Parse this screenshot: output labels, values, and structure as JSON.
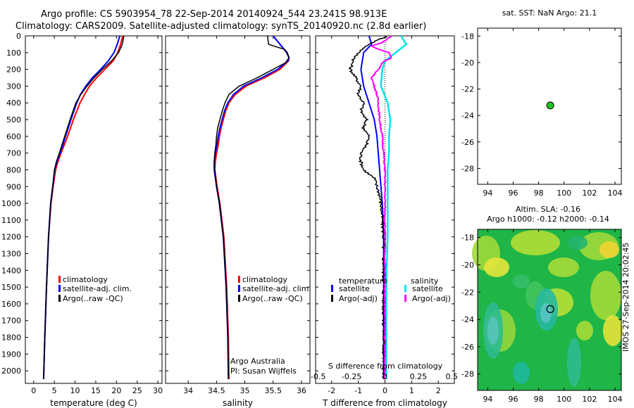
{
  "title_line1": "Argo profile: CS 5903954_78 22-Sep-2014 20140924_544 23.241S 98.913E",
  "title_line2": "Climatology: CARS2009. Satellite-adjusted climatology: synTS_20140920.nc (2.8d earlier)",
  "side_label": "IMOS 27-Sep-2014 20:02:45",
  "colors": {
    "climatology": "#ff0000",
    "satellite": "#0000ff",
    "argo": "#000000",
    "sal_sat": "#00e5ee",
    "sal_argo": "#ff00ff",
    "marker": "#22c422"
  },
  "chart_data": [
    {
      "type": "line",
      "xlabel": "temperature (deg C)",
      "ylabel": "",
      "xlim": [
        -2,
        31
      ],
      "ylim": [
        2075,
        0
      ],
      "xticks": [
        "0",
        "5",
        "10",
        "15",
        "20",
        "25",
        "30"
      ],
      "xtick_values": [
        0,
        5,
        10,
        15,
        20,
        25,
        30
      ],
      "yticks": [
        "0",
        "100",
        "200",
        "300",
        "400",
        "500",
        "600",
        "700",
        "800",
        "900",
        "1000",
        "1100",
        "1200",
        "1300",
        "1400",
        "1500",
        "1600",
        "1700",
        "1800",
        "1900",
        "2000"
      ],
      "ytick_values": [
        0,
        100,
        200,
        300,
        400,
        500,
        600,
        700,
        800,
        900,
        1000,
        1100,
        1200,
        1300,
        1400,
        1500,
        1600,
        1700,
        1800,
        1900,
        2000
      ],
      "legend": [
        "climatology",
        "satellite-adj. clim.",
        "Argo(..raw -QC)"
      ],
      "series": [
        {
          "name": "climatology",
          "depth": [
            0,
            50,
            100,
            150,
            200,
            250,
            300,
            350,
            400,
            500,
            600,
            700,
            750,
            800,
            900,
            1000,
            1200,
            1500,
            1800,
            2050
          ],
          "values": [
            21.5,
            21,
            20.3,
            19.2,
            17.2,
            15.2,
            13.5,
            12.3,
            11.2,
            9.6,
            8.2,
            6.6,
            5.9,
            5.3,
            4.7,
            4.2,
            3.6,
            3.1,
            2.7,
            2.4
          ]
        },
        {
          "name": "satellite-adj. clim.",
          "depth": [
            0,
            50,
            100,
            150,
            200,
            250,
            300,
            350,
            400,
            500,
            600,
            700,
            750,
            800,
            900,
            1000,
            1200,
            1500,
            1800,
            2050
          ],
          "values": [
            20.8,
            20.2,
            19.4,
            18,
            16.2,
            14.2,
            12.6,
            11.3,
            10.4,
            9,
            7.7,
            6.4,
            5.6,
            5.1,
            4.6,
            4.1,
            3.6,
            3.1,
            2.7,
            2.4
          ]
        },
        {
          "name": "Argo(..raw -QC)",
          "depth": [
            0,
            50,
            100,
            150,
            200,
            250,
            300,
            350,
            400,
            500,
            600,
            700,
            750,
            800,
            900,
            1000,
            1200,
            1500,
            1800,
            2050
          ],
          "values": [
            21.8,
            21.4,
            20.5,
            18.8,
            16.6,
            14.6,
            12.9,
            11.4,
            10.2,
            8.8,
            7.5,
            6.2,
            5.5,
            5,
            4.6,
            4.1,
            3.6,
            3.1,
            2.7,
            2.4
          ]
        }
      ]
    },
    {
      "type": "line",
      "xlabel": "salinity",
      "xlim": [
        33.6,
        36.15
      ],
      "ylim": [
        2075,
        0
      ],
      "xticks": [
        "34",
        "34.5",
        "35",
        "35.5",
        "36"
      ],
      "xtick_values": [
        34,
        34.5,
        35,
        35.5,
        36
      ],
      "legend": [
        "climatology",
        "satellite-adj. clim.",
        "Argo(..raw -QC)"
      ],
      "annotation": [
        "Argo Australia",
        "PI: Susan Wijffels"
      ],
      "series": [
        {
          "name": "climatology",
          "depth": [
            0,
            50,
            100,
            130,
            150,
            200,
            250,
            300,
            350,
            400,
            450,
            500,
            550,
            600,
            650,
            700,
            750,
            800,
            900,
            1000,
            1200,
            1500,
            1800,
            2050
          ],
          "values": [
            35.5,
            35.62,
            35.74,
            35.78,
            35.77,
            35.62,
            35.35,
            35.02,
            34.83,
            34.72,
            34.66,
            34.62,
            34.58,
            34.55,
            34.53,
            34.5,
            34.48,
            34.47,
            34.51,
            34.56,
            34.63,
            34.68,
            34.71,
            34.72
          ]
        },
        {
          "name": "satellite-adj. clim.",
          "depth": [
            0,
            50,
            100,
            130,
            150,
            200,
            250,
            300,
            350,
            400,
            450,
            500,
            550,
            600,
            650,
            700,
            750,
            800,
            900,
            1000,
            1200,
            1500,
            1800,
            2050
          ],
          "values": [
            35.5,
            35.62,
            35.74,
            35.78,
            35.76,
            35.58,
            35.3,
            34.98,
            34.8,
            34.7,
            34.64,
            34.6,
            34.56,
            34.53,
            34.51,
            34.48,
            34.46,
            34.46,
            34.5,
            34.55,
            34.62,
            34.67,
            34.7,
            34.71
          ]
        },
        {
          "name": "Argo(..raw -QC)",
          "depth": [
            0,
            50,
            70,
            80,
            100,
            130,
            160,
            200,
            250,
            300,
            350,
            400,
            450,
            500,
            550,
            600,
            650,
            700,
            750,
            800,
            900,
            1000,
            1200,
            1500,
            1800,
            2050
          ],
          "values": [
            35.4,
            35.42,
            35.6,
            35.7,
            35.75,
            35.78,
            35.72,
            35.5,
            35.22,
            34.9,
            34.72,
            34.65,
            34.6,
            34.56,
            34.52,
            34.5,
            34.49,
            34.47,
            34.46,
            34.47,
            34.5,
            34.55,
            34.62,
            34.67,
            34.7,
            34.71
          ]
        }
      ]
    },
    {
      "type": "line",
      "xlabel": "T difference from climatology",
      "xlabel_top": "S difference from climatology",
      "xlim": [
        -2.6,
        2.6
      ],
      "ylim": [
        2075,
        0
      ],
      "xticks": [
        "-2",
        "-1",
        "0",
        "1",
        "2"
      ],
      "xtick_values": [
        -2,
        -1,
        0,
        1,
        2
      ],
      "xticks_salinity": [
        "-0.5",
        "-0.25",
        "0",
        "0.25",
        "0.5"
      ],
      "xtick_values_salinity": [
        -0.5,
        -0.25,
        0,
        0.25,
        0.5
      ],
      "legend_headers": [
        "temperature",
        "salinity"
      ],
      "legend": [
        "satellite",
        "Argo(-adj)",
        "satellite",
        "Argo(-adj)"
      ],
      "series": [
        {
          "name": "temperature satellite",
          "variable": "T",
          "depth": [
            0,
            50,
            100,
            200,
            300,
            400,
            500,
            600,
            700,
            800,
            900,
            1000,
            1200,
            1500,
            1800,
            2050
          ],
          "values": [
            -0.6,
            -0.5,
            -0.8,
            -0.9,
            -0.8,
            -0.6,
            -0.4,
            -0.3,
            -0.25,
            -0.2,
            -0.15,
            -0.1,
            -0.05,
            -0.05,
            -0.05,
            -0.05
          ]
        },
        {
          "name": "temperature Argo(-adj)",
          "variable": "T",
          "depth": [
            0,
            50,
            100,
            150,
            200,
            250,
            300,
            350,
            400,
            450,
            500,
            550,
            600,
            650,
            700,
            750,
            800,
            850,
            900,
            950,
            1000,
            1100,
            1200,
            1400,
            1600,
            1800,
            2050
          ],
          "values": [
            0.1,
            -0.6,
            -1,
            -1.2,
            -1.3,
            -1.1,
            -0.9,
            -1,
            -0.8,
            -0.9,
            -0.7,
            -0.8,
            -0.6,
            -0.7,
            -0.9,
            -0.9,
            -0.8,
            -0.4,
            -0.3,
            -0.2,
            -0.15,
            -0.1,
            -0.05,
            -0.05,
            -0.05,
            -0.05,
            -0.05
          ]
        },
        {
          "name": "salinity satellite",
          "variable": "S",
          "depth": [
            0,
            50,
            100,
            150,
            200,
            300,
            400,
            500,
            600,
            700,
            800,
            900,
            1000,
            1200,
            1500,
            2050
          ],
          "values": [
            0.12,
            0.16,
            0.08,
            0.0,
            -0.02,
            -0.03,
            0.02,
            0.04,
            0.03,
            0.03,
            0.02,
            0.02,
            0.02,
            0.02,
            0.01,
            0.01
          ]
        },
        {
          "name": "salinity Argo(-adj)",
          "variable": "S",
          "depth": [
            0,
            40,
            60,
            80,
            100,
            130,
            160,
            200,
            250,
            300,
            350,
            400,
            500,
            600,
            800,
            1000,
            1500,
            2050
          ],
          "values": [
            0.05,
            -0.02,
            -0.1,
            -0.05,
            0.03,
            0.05,
            -0.02,
            -0.05,
            -0.1,
            -0.08,
            -0.06,
            -0.05,
            -0.04,
            -0.02,
            0.0,
            0.0,
            0.0,
            0.0
          ]
        }
      ]
    },
    {
      "type": "scatter",
      "title": "sat. SST: NaN Argo: 21.1",
      "xlim": [
        93.2,
        104.5
      ],
      "ylim": [
        -29.2,
        -17.4
      ],
      "xticks": [
        "94",
        "96",
        "98",
        "100",
        "102",
        "104"
      ],
      "xtick_values": [
        94,
        96,
        98,
        100,
        102,
        104
      ],
      "yticks": [
        "-18",
        "-20",
        "-22",
        "-24",
        "-26",
        "-28"
      ],
      "ytick_values": [
        -18,
        -20,
        -22,
        -24,
        -26,
        -28
      ],
      "points": [
        {
          "lon": 98.913,
          "lat": -23.241
        }
      ]
    },
    {
      "type": "heatmap",
      "title_line1": "Altim. SLA: -0.16",
      "title_line2": "Argo h1000: -0.12 h2000: -0.14",
      "xlim": [
        93.2,
        104.5
      ],
      "ylim": [
        -29.2,
        -17.4
      ],
      "xticks": [
        "94",
        "96",
        "98",
        "100",
        "102",
        "104"
      ],
      "xtick_values": [
        94,
        96,
        98,
        100,
        102,
        104
      ],
      "yticks": [
        "-18",
        "-20",
        "-22",
        "-24",
        "-26",
        "-28"
      ],
      "ytick_values": [
        -18,
        -20,
        -22,
        -24,
        -26,
        -28
      ],
      "marker": {
        "lon": 98.913,
        "lat": -23.241
      }
    }
  ]
}
